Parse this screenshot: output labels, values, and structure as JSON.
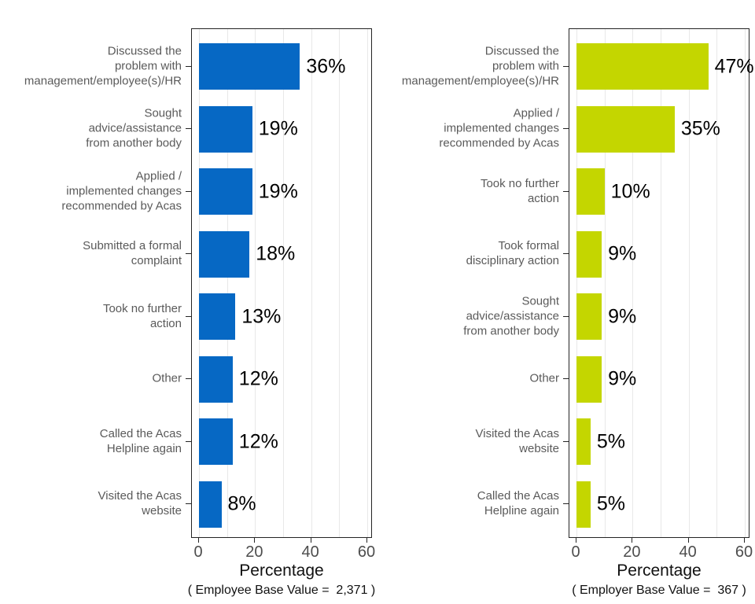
{
  "figure": {
    "background": "#ffffff",
    "panel_border_color": "#242424",
    "gridline_color": "#e8e8e8",
    "category_label_color": "#5a5a5a",
    "tick_label_color": "#4d4d4d"
  },
  "chart_data": [
    {
      "type": "bar",
      "orientation": "horizontal",
      "group": "Employee",
      "bar_color": "#0668C4",
      "categories": [
        "Discussed the\nproblem with\nmanagement/employee(s)/HR",
        "Sought\nadvice/assistance\nfrom another body",
        "Applied /\nimplemented changes\nrecommended by Acas",
        "Submitted a formal\ncomplaint",
        "Took no further\naction",
        "Other",
        "Called the Acas\nHelpline again",
        "Visited the Acas\nwebsite"
      ],
      "values": [
        36,
        19,
        19,
        18,
        13,
        12,
        12,
        8
      ],
      "value_labels": [
        "36%",
        "19%",
        "19%",
        "18%",
        "13%",
        "12%",
        "12%",
        "8%"
      ],
      "xlabel": "Percentage",
      "xticks": [
        0,
        20,
        40,
        60
      ],
      "gridlines": [
        0,
        10,
        20,
        30,
        40,
        50,
        60
      ],
      "xlim": [
        0,
        62
      ],
      "grid": true,
      "legend": "none",
      "caption": "( Employee Base Value =  2,371 )"
    },
    {
      "type": "bar",
      "orientation": "horizontal",
      "group": "Employer",
      "bar_color": "#C4D600",
      "categories": [
        "Discussed the\nproblem with\nmanagement/employee(s)/HR",
        "Applied /\nimplemented changes\nrecommended by Acas",
        "Took no further\naction",
        "Took formal\ndisciplinary action",
        "Sought\nadvice/assistance\nfrom another body",
        "Other",
        "Visited the Acas\nwebsite",
        "Called the Acas\nHelpline again"
      ],
      "values": [
        47,
        35,
        10,
        9,
        9,
        9,
        5,
        5
      ],
      "value_labels": [
        "47%",
        "35%",
        "10%",
        "9%",
        "9%",
        "9%",
        "5%",
        "5%"
      ],
      "xlabel": "Percentage",
      "xticks": [
        0,
        20,
        40,
        60
      ],
      "gridlines": [
        0,
        10,
        20,
        30,
        40,
        50,
        60
      ],
      "xlim": [
        0,
        62
      ],
      "grid": true,
      "legend": "none",
      "caption": "( Employer Base Value =  367 )"
    }
  ]
}
